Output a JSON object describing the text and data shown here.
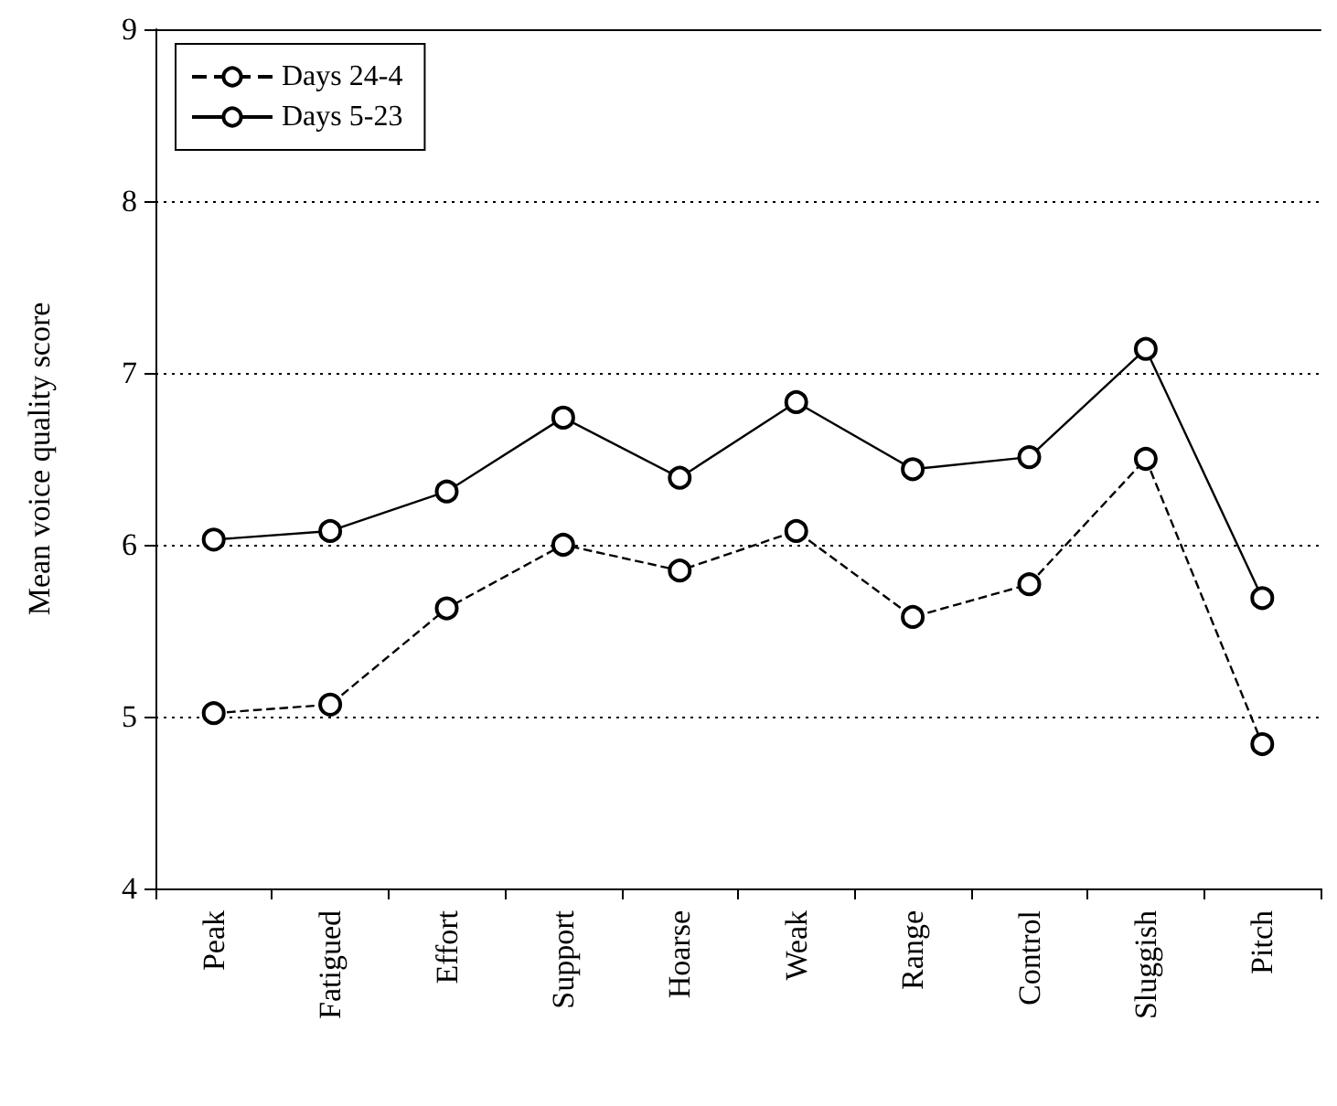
{
  "chart_data": {
    "type": "line",
    "ylabel": "Mean voice quality score",
    "categories": [
      "Peak",
      "Fatigued",
      "Effort",
      "Support",
      "Hoarse",
      "Weak",
      "Range",
      "Control",
      "Sluggish",
      "Pitch"
    ],
    "series": [
      {
        "name": "Days 24-4",
        "color": "#000000",
        "line_style": "dashed",
        "values": [
          5.02,
          5.07,
          5.63,
          6.0,
          5.85,
          6.08,
          5.58,
          5.77,
          6.5,
          4.84
        ]
      },
      {
        "name": "Days 5-23",
        "color": "#000000",
        "line_style": "solid",
        "values": [
          6.03,
          6.08,
          6.31,
          6.74,
          6.39,
          6.83,
          6.44,
          6.51,
          7.14,
          5.69
        ]
      }
    ],
    "ylim": [
      4,
      9
    ],
    "yticks": [
      4,
      5,
      6,
      7,
      8,
      9
    ],
    "grid": "y",
    "legend": "top left",
    "marker": "circle"
  }
}
